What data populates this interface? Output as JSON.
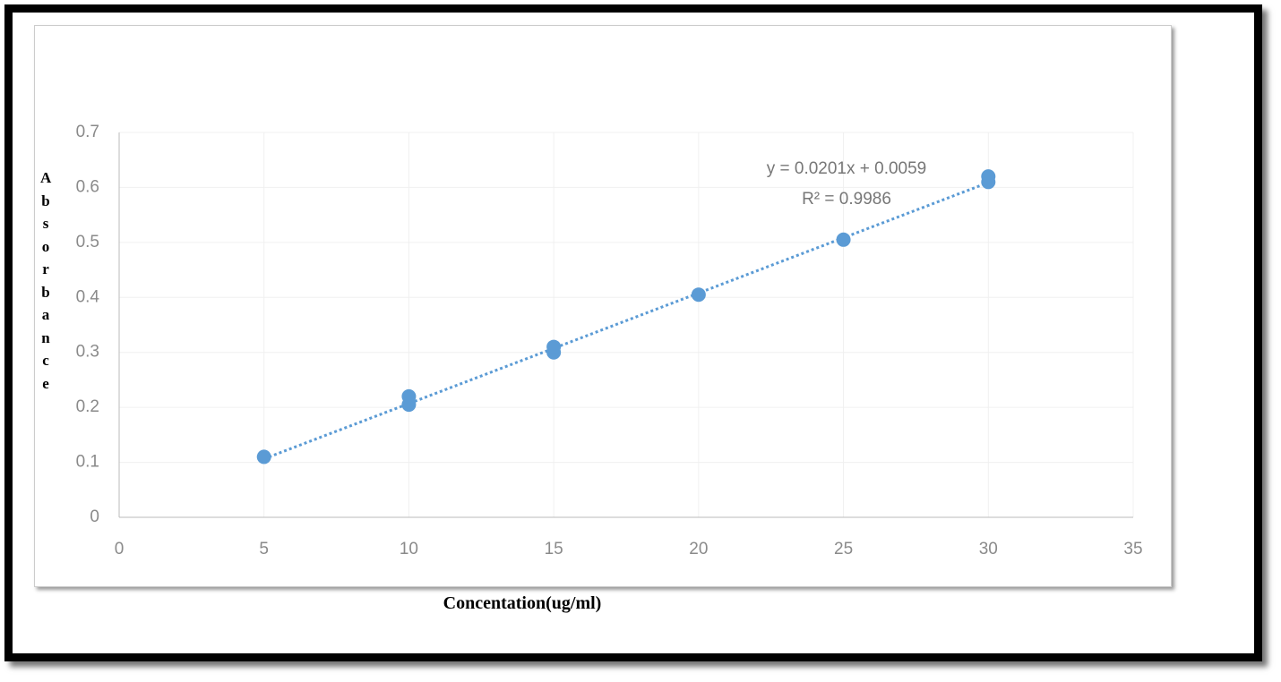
{
  "chart_data": {
    "type": "scatter",
    "x_label": "Concentation(ug/ml)",
    "y_label": "Absorbance",
    "series": [
      {
        "color": "#5b9bd5",
        "x": [
          5,
          10,
          10,
          15,
          15,
          20,
          25,
          30,
          30
        ],
        "values": [
          0.11,
          0.205,
          0.22,
          0.3,
          0.31,
          0.405,
          0.505,
          0.61,
          0.62
        ]
      }
    ],
    "trendline": {
      "slope": 0.0201,
      "intercept": 0.0059,
      "equation": "y = 0.0201x + 0.0059",
      "r_squared": "R² = 0.9986"
    },
    "xlim": [
      0,
      35
    ],
    "xticks": [
      0,
      5,
      10,
      15,
      20,
      25,
      30,
      35
    ],
    "ylim": [
      0,
      0.7
    ],
    "yticks": [
      0,
      0.1,
      0.2,
      0.3,
      0.4,
      0.5,
      0.6,
      0.7
    ],
    "grid": true
  }
}
